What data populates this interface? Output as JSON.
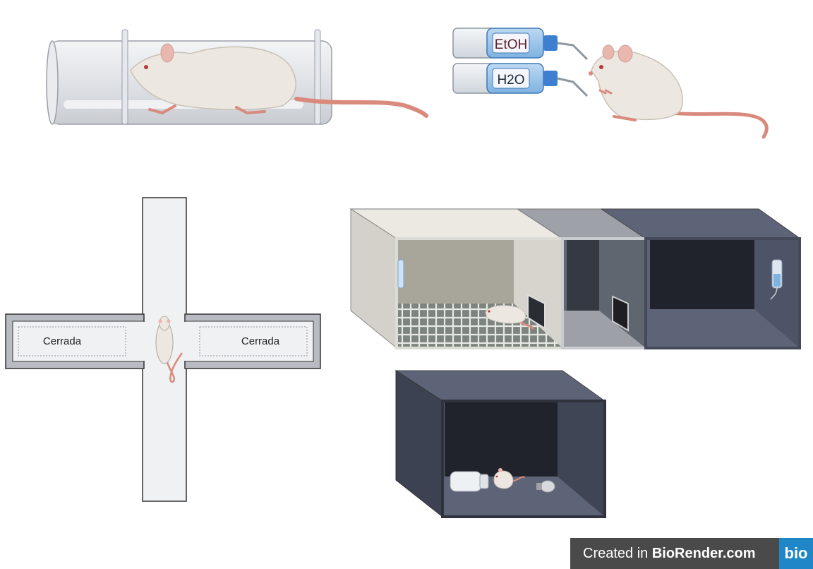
{
  "restraint": {},
  "preference": {
    "bottle_top_label": "EtOH",
    "bottle_bottom_label": "H2O"
  },
  "maze": {
    "left_arm_label": "Cerrada",
    "right_arm_label": "Cerrada"
  },
  "shuttle_box": {},
  "dark_box": {},
  "footer": {
    "prefix": "Created in ",
    "brand": "BioRender.com",
    "logo_text": "bio"
  },
  "colors": {
    "rat_body": "#ece7e0",
    "rat_tail": "#d98a7c",
    "light_chamber": "#a8a69a",
    "mid_chamber": "#5f6670",
    "dark_chamber": "#20232b",
    "box_frame": "#5c6276",
    "brand_blue": "#1f86c8"
  }
}
